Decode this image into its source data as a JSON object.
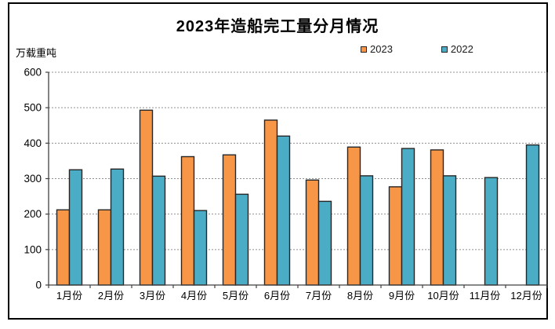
{
  "title": "2023年造船完工量分月情况",
  "unit_label": "万载重吨",
  "legend": [
    {
      "label": "2023",
      "color": "#F79646"
    },
    {
      "label": "2022",
      "color": "#4BACC6"
    }
  ],
  "colors": {
    "series_2023": "#F79646",
    "series_2022": "#4BACC6",
    "bar_border": "#262626",
    "axis": "#404040",
    "gridline": "#909090",
    "text": "#000000",
    "frame_border": "#000000",
    "background": "#ffffff"
  },
  "chart_data": {
    "type": "bar",
    "title": "2023年造船完工量分月情况",
    "xlabel": "",
    "ylabel": "万载重吨",
    "categories": [
      "1月份",
      "2月份",
      "3月份",
      "4月份",
      "5月份",
      "6月份",
      "7月份",
      "8月份",
      "9月份",
      "10月份",
      "11月份",
      "12月份"
    ],
    "series": [
      {
        "name": "2023",
        "color": "#F79646",
        "values": [
          212,
          212,
          493,
          362,
          367,
          465,
          296,
          389,
          277,
          381,
          null,
          null
        ]
      },
      {
        "name": "2022",
        "color": "#4BACC6",
        "values": [
          325,
          327,
          307,
          210,
          256,
          420,
          236,
          308,
          385,
          308,
          303,
          395
        ]
      }
    ],
    "ylim": [
      0,
      600
    ],
    "ytick_interval": 100,
    "yticks": [
      0,
      100,
      200,
      300,
      400,
      500,
      600
    ],
    "grid": "horizontal-dotted",
    "legend_position": "top-right"
  }
}
